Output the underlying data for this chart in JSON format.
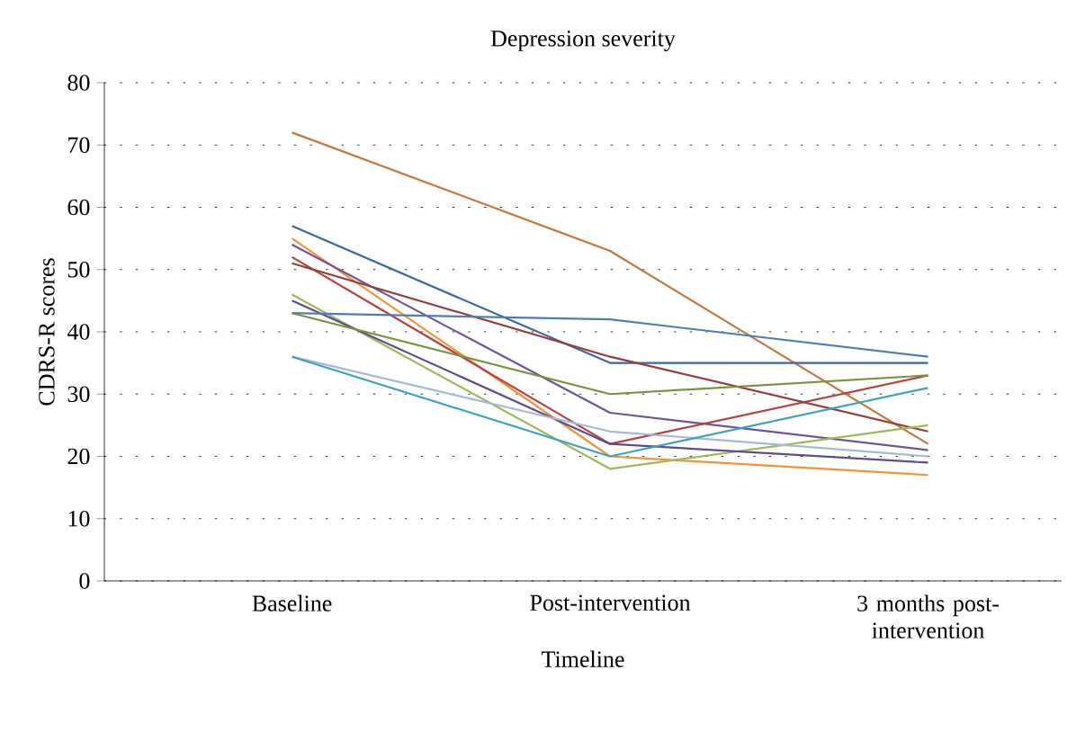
{
  "chart_data": {
    "type": "line",
    "title": "Depression severity",
    "xlabel": "Timeline",
    "ylabel": "CDRS-R scores",
    "categories": [
      "Baseline",
      "Post-intervention",
      "3 months post-intervention"
    ],
    "ylim": [
      0,
      80
    ],
    "yticks": [
      0,
      10,
      20,
      30,
      40,
      50,
      60,
      70,
      80
    ],
    "grid": "y",
    "marker": "none",
    "line_style": "solid",
    "series": [
      {
        "color": "#c8763a",
        "values": [
          72,
          53,
          22
        ]
      },
      {
        "color": "#3a679e",
        "values": [
          57,
          35,
          35
        ]
      },
      {
        "color": "#f39236",
        "values": [
          55,
          20,
          17
        ]
      },
      {
        "color": "#6e5499",
        "values": [
          54,
          27,
          21
        ]
      },
      {
        "color": "#b9413f",
        "values": [
          52,
          22,
          33
        ]
      },
      {
        "color": "#963d3b",
        "values": [
          51,
          36,
          24
        ]
      },
      {
        "color": "#9bbb59",
        "values": [
          46,
          18,
          25
        ]
      },
      {
        "color": "#5f4b8b",
        "values": [
          45,
          22,
          19
        ]
      },
      {
        "color": "#4a7ebb",
        "values": [
          43,
          42,
          36
        ]
      },
      {
        "color": "#77933c",
        "values": [
          43,
          30,
          33
        ]
      },
      {
        "color": "#a5b9d8",
        "values": [
          36,
          24,
          20
        ]
      },
      {
        "color": "#3aa3c0",
        "values": [
          36,
          20,
          31
        ]
      }
    ]
  }
}
